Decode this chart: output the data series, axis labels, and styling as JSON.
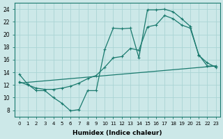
{
  "xlabel": "Humidex (Indice chaleur)",
  "ylabel": "",
  "xlim": [
    -0.5,
    23.5
  ],
  "ylim": [
    7,
    25
  ],
  "xticks": [
    0,
    1,
    2,
    3,
    4,
    5,
    6,
    7,
    8,
    9,
    10,
    11,
    12,
    13,
    14,
    15,
    16,
    17,
    18,
    19,
    20,
    21,
    22,
    23
  ],
  "yticks": [
    8,
    10,
    12,
    14,
    16,
    18,
    20,
    22,
    24
  ],
  "bg_color": "#cce8e8",
  "grid_color": "#aad4d4",
  "line_color": "#1a7a6e",
  "line1_x": [
    0,
    1,
    2,
    3,
    4,
    5,
    6,
    7,
    8,
    9,
    10,
    11,
    12,
    13,
    14,
    15,
    16,
    17,
    18,
    19,
    20,
    21,
    22,
    23
  ],
  "line1_y": [
    13.7,
    12.1,
    11.1,
    11.1,
    10.0,
    9.1,
    7.9,
    8.1,
    11.1,
    11.1,
    17.6,
    21.0,
    20.9,
    21.0,
    16.3,
    23.9,
    23.9,
    24.0,
    23.6,
    22.5,
    21.3,
    16.7,
    15.5,
    14.8
  ],
  "line2_x": [
    0,
    1,
    2,
    3,
    4,
    5,
    6,
    7,
    8,
    9,
    10,
    11,
    12,
    13,
    14,
    15,
    16,
    17,
    18,
    19,
    20,
    21,
    22,
    23
  ],
  "line2_y": [
    12.5,
    12.0,
    11.5,
    11.3,
    11.3,
    11.5,
    11.8,
    12.3,
    13.0,
    13.5,
    14.8,
    16.3,
    16.5,
    17.8,
    17.5,
    21.2,
    21.5,
    23.0,
    22.5,
    21.5,
    21.0,
    16.8,
    15.0,
    15.0
  ],
  "line3_x": [
    0,
    23
  ],
  "line3_y": [
    12.3,
    15.0
  ],
  "marker": "+"
}
